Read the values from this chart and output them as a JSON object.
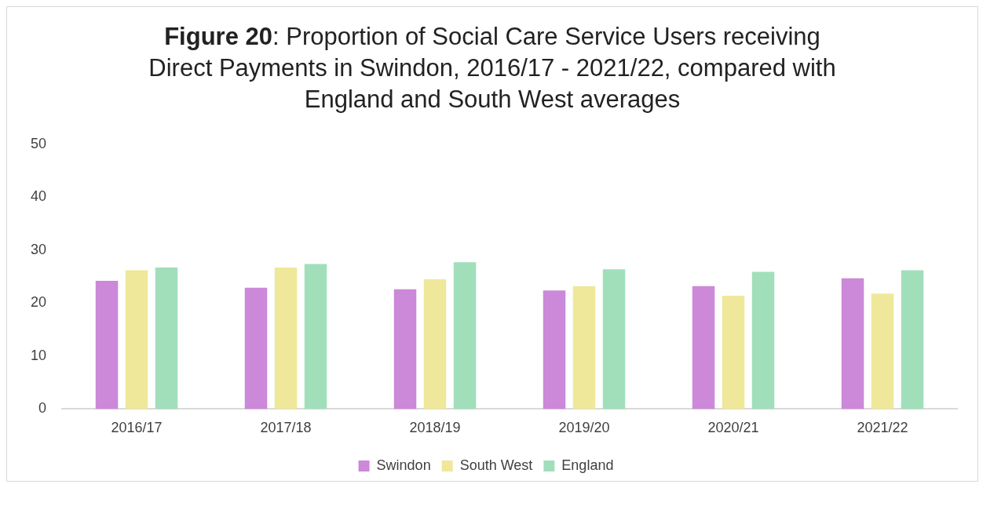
{
  "chart_data": {
    "type": "bar",
    "title": "Figure 20: Proportion of Social Care Service Users receiving Direct Payments in Swindon, 2016/17 - 2021/22, compared with England and South West averages",
    "categories": [
      "2016/17",
      "2017/18",
      "2018/19",
      "2019/20",
      "2020/21",
      "2021/22"
    ],
    "series": [
      {
        "name": "Swindon",
        "color": "#cc88d9",
        "values": [
          24.2,
          22.9,
          22.6,
          22.4,
          23.2,
          24.7
        ]
      },
      {
        "name": "South West",
        "color": "#efe89a",
        "values": [
          26.2,
          26.7,
          24.5,
          23.2,
          21.4,
          21.8
        ]
      },
      {
        "name": "England",
        "color": "#a1dfbb",
        "values": [
          26.7,
          27.4,
          27.7,
          26.4,
          25.9,
          26.2
        ]
      }
    ],
    "ylim": [
      0,
      50
    ],
    "yticks": [
      0,
      10,
      20,
      30,
      40,
      50
    ],
    "grid": false,
    "legend": "bottom"
  }
}
